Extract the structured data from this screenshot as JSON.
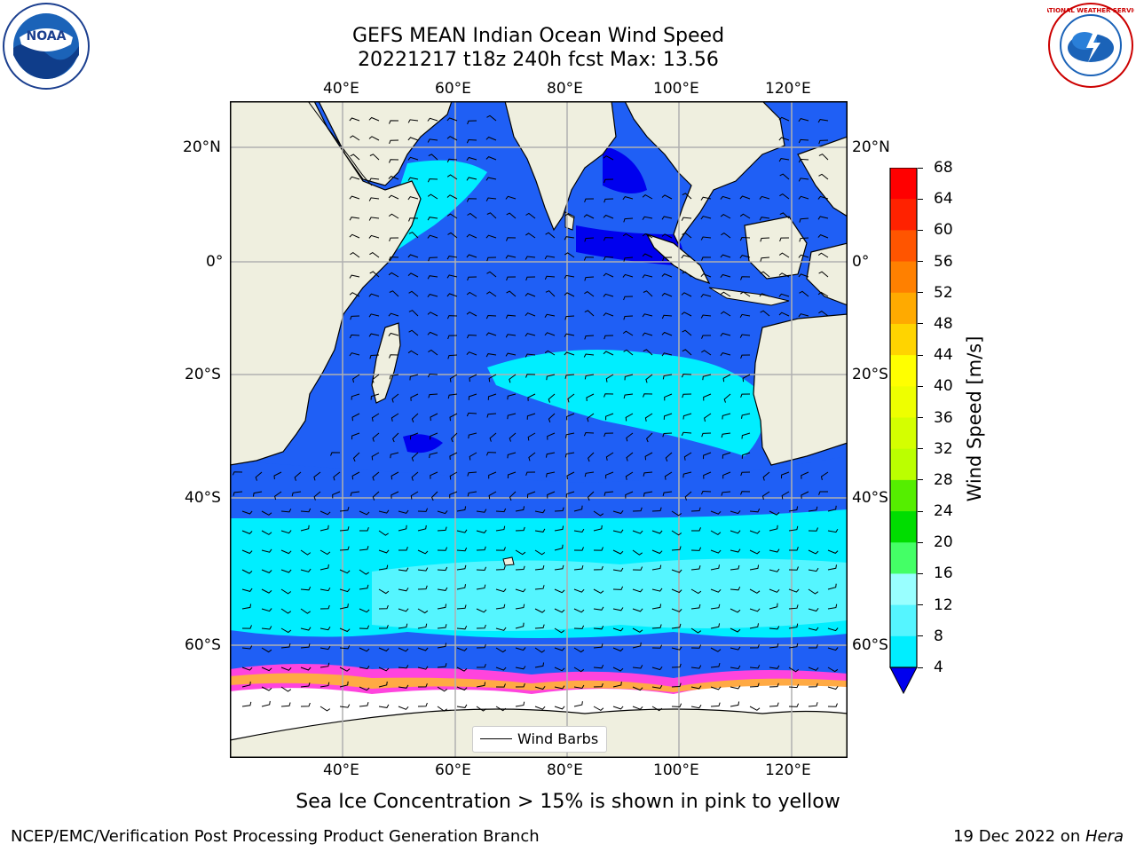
{
  "title": {
    "line1": "GEFS MEAN Indian Ocean Wind Speed",
    "line2": "20221217 t18z 240h fcst   Max: 13.56"
  },
  "map": {
    "lon_labels": [
      "40°E",
      "60°E",
      "80°E",
      "100°E",
      "120°E"
    ],
    "lat_labels": [
      "20°N",
      "0°",
      "20°S",
      "40°S",
      "60°S"
    ],
    "legend_label": "Wind Barbs",
    "colors": {
      "land": "#efefdf",
      "ocean_dark": "#0000ee",
      "ocean_4_8": "#1f5ff5",
      "ocean_8_12": "#00eeff",
      "ocean_12_16": "#55f5ff",
      "ice_pink": "#ff44dd",
      "ice_orange": "#ffaa44",
      "ice_white": "#ffffff"
    }
  },
  "colorbar": {
    "label": "Wind Speed [m/s]",
    "ticks": [
      "68",
      "64",
      "60",
      "56",
      "52",
      "48",
      "44",
      "40",
      "36",
      "32",
      "28",
      "24",
      "20",
      "16",
      "12",
      "8",
      "4"
    ],
    "colors": [
      "#ff0000",
      "#ff2200",
      "#ff5500",
      "#ff8000",
      "#ffaa00",
      "#ffd400",
      "#ffff00",
      "#eeff00",
      "#d4ff00",
      "#bbff00",
      "#55ee00",
      "#00dd00",
      "#44ff66",
      "#99ffff",
      "#55f5ff",
      "#00eeff",
      "#1f5ff5"
    ],
    "extend_color": "#0000ee"
  },
  "logos": {
    "left_text": "NOAA",
    "right_text": "NATIONAL WEATHER SERVICE"
  },
  "caption": "Sea Ice Concentration > 15% is shown in pink to yellow",
  "footer": {
    "left": "NCEP/EMC/Verification Post Processing Product Generation Branch",
    "right_prefix": "19 Dec 2022 on ",
    "right_host": "Hera"
  }
}
